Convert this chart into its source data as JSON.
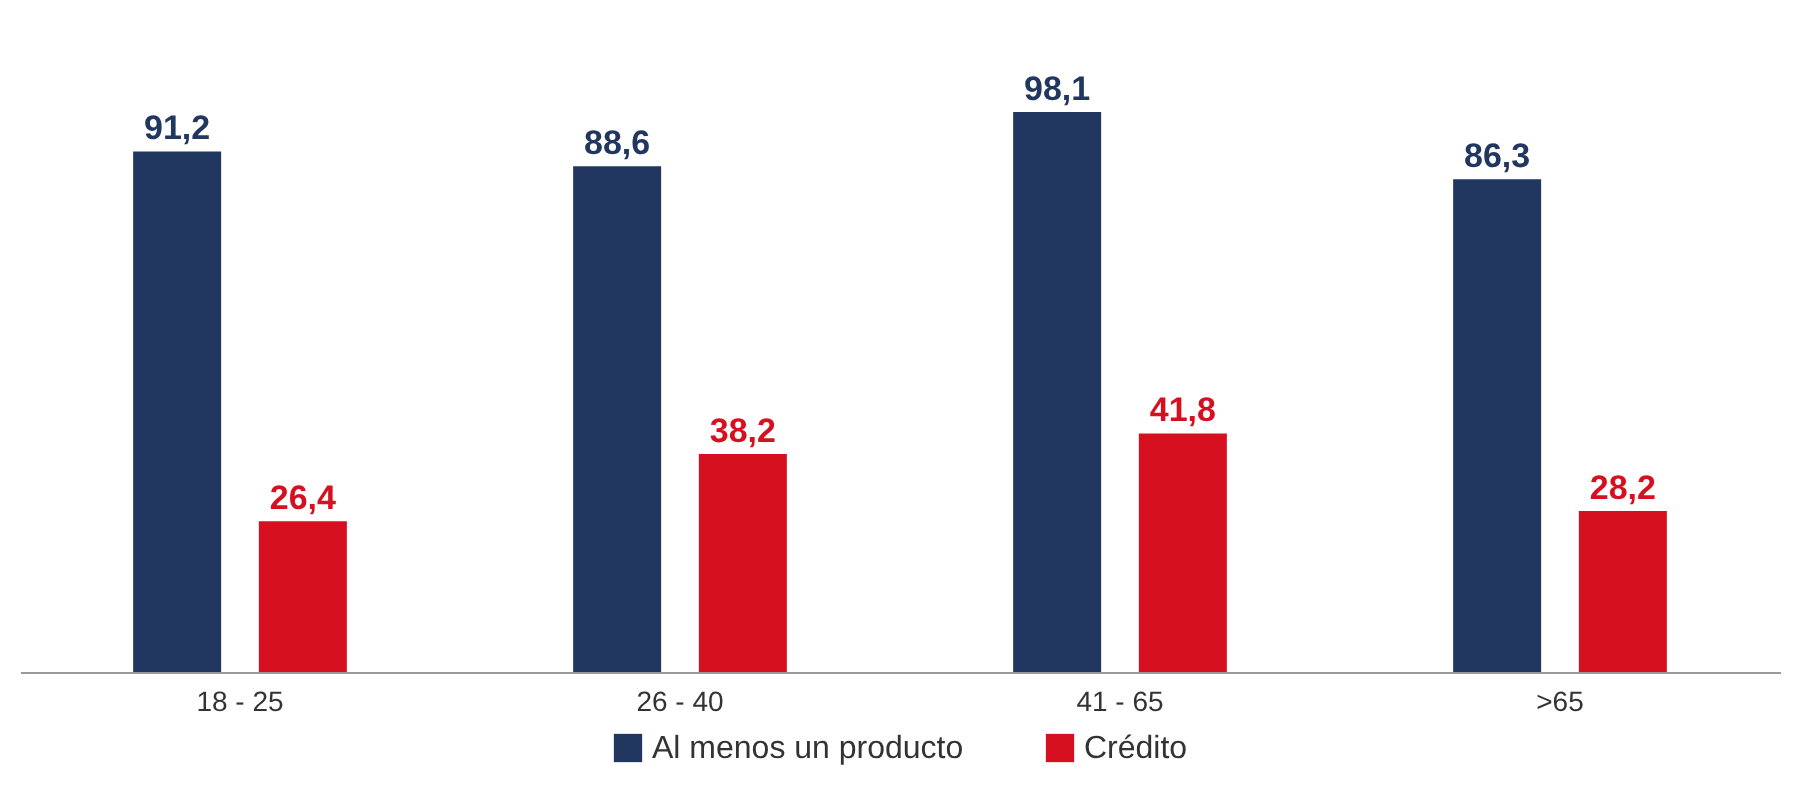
{
  "chart_data": {
    "type": "bar",
    "categories": [
      "18 - 25",
      "26 - 40",
      "41 - 65",
      ">65"
    ],
    "series": [
      {
        "name": "Al menos un producto",
        "color": "#22375f",
        "values": [
          91.2,
          88.6,
          98.1,
          86.3
        ],
        "value_labels": [
          "91,2",
          "88,6",
          "98,1",
          "86,3"
        ]
      },
      {
        "name": "Crédito",
        "color": "#d7101f",
        "values": [
          26.4,
          38.2,
          41.8,
          28.2
        ],
        "value_labels": [
          "26,4",
          "38,2",
          "41,8",
          "28,2"
        ]
      }
    ],
    "legend": "bottom",
    "grid": false
  }
}
